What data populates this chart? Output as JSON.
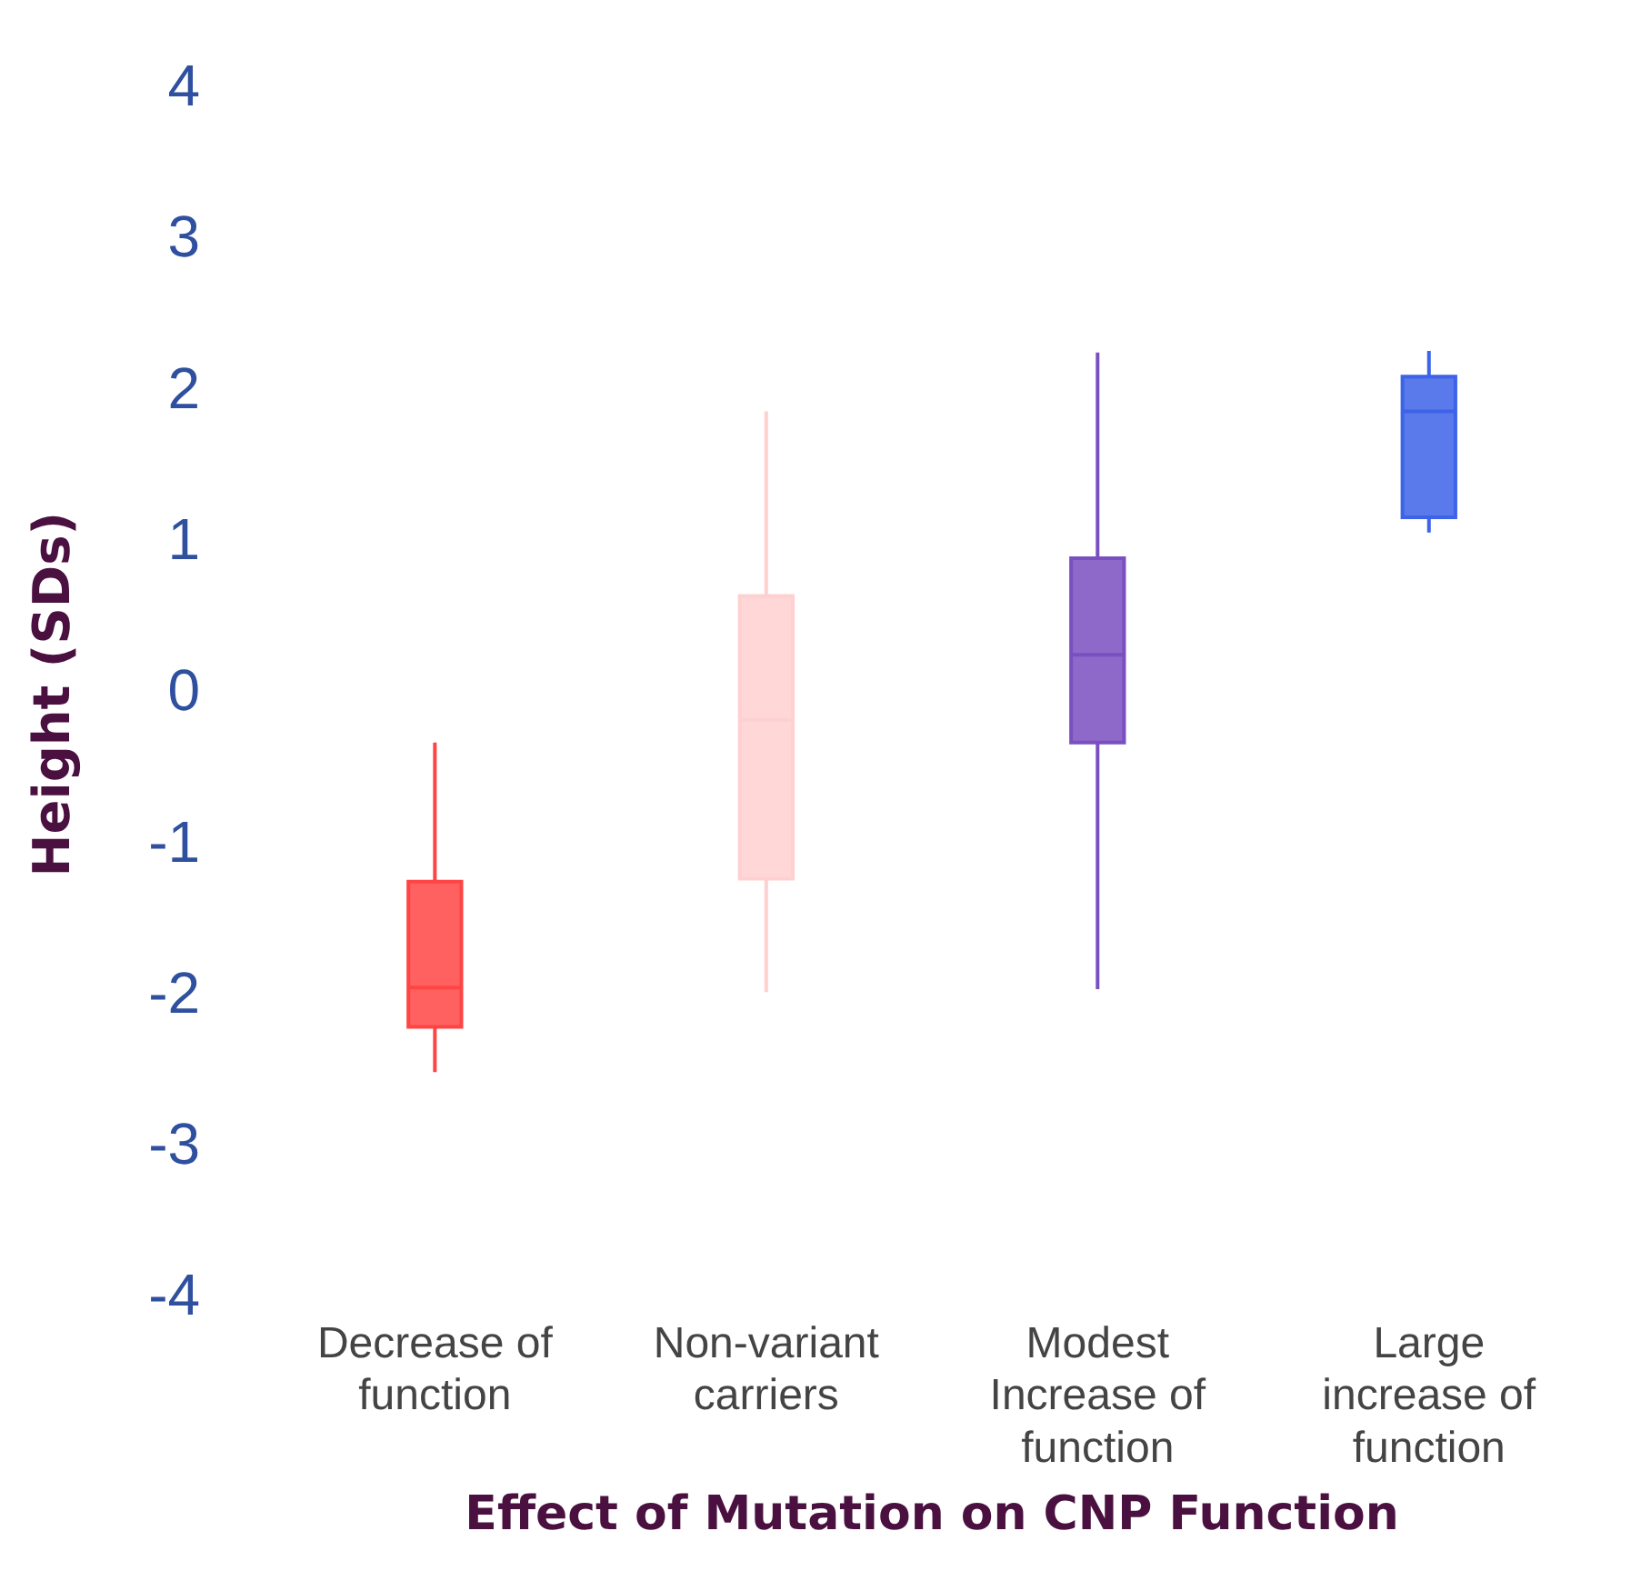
{
  "chart_data": {
    "type": "box",
    "xlabel": "Effect of Mutation on CNP Function",
    "ylabel": "Height (SDs)",
    "categories": [
      "Decrease of function",
      "Non-variant carriers",
      "Modest Increase of function",
      "Large increase of function"
    ],
    "colors": [
      "#ff4444",
      "#ffd0d0",
      "#7a4fc0",
      "#3d63e8"
    ],
    "boxes": [
      {
        "low": -2.5,
        "q1": -2.2,
        "median": -1.94,
        "q3": -1.24,
        "high": -0.32
      },
      {
        "low": -1.97,
        "q1": -1.22,
        "median": -0.17,
        "q3": 0.65,
        "high": 1.87
      },
      {
        "low": -1.95,
        "q1": -0.32,
        "median": 0.26,
        "q3": 0.9,
        "high": 2.26
      },
      {
        "low": 1.07,
        "q1": 1.17,
        "median": 1.87,
        "q3": 2.1,
        "high": 2.27
      }
    ],
    "ylim": [
      -4,
      4
    ],
    "yticks": [
      -4,
      -3,
      -2,
      -1,
      0,
      1,
      2,
      3,
      4
    ],
    "grid": false,
    "legend": false
  }
}
